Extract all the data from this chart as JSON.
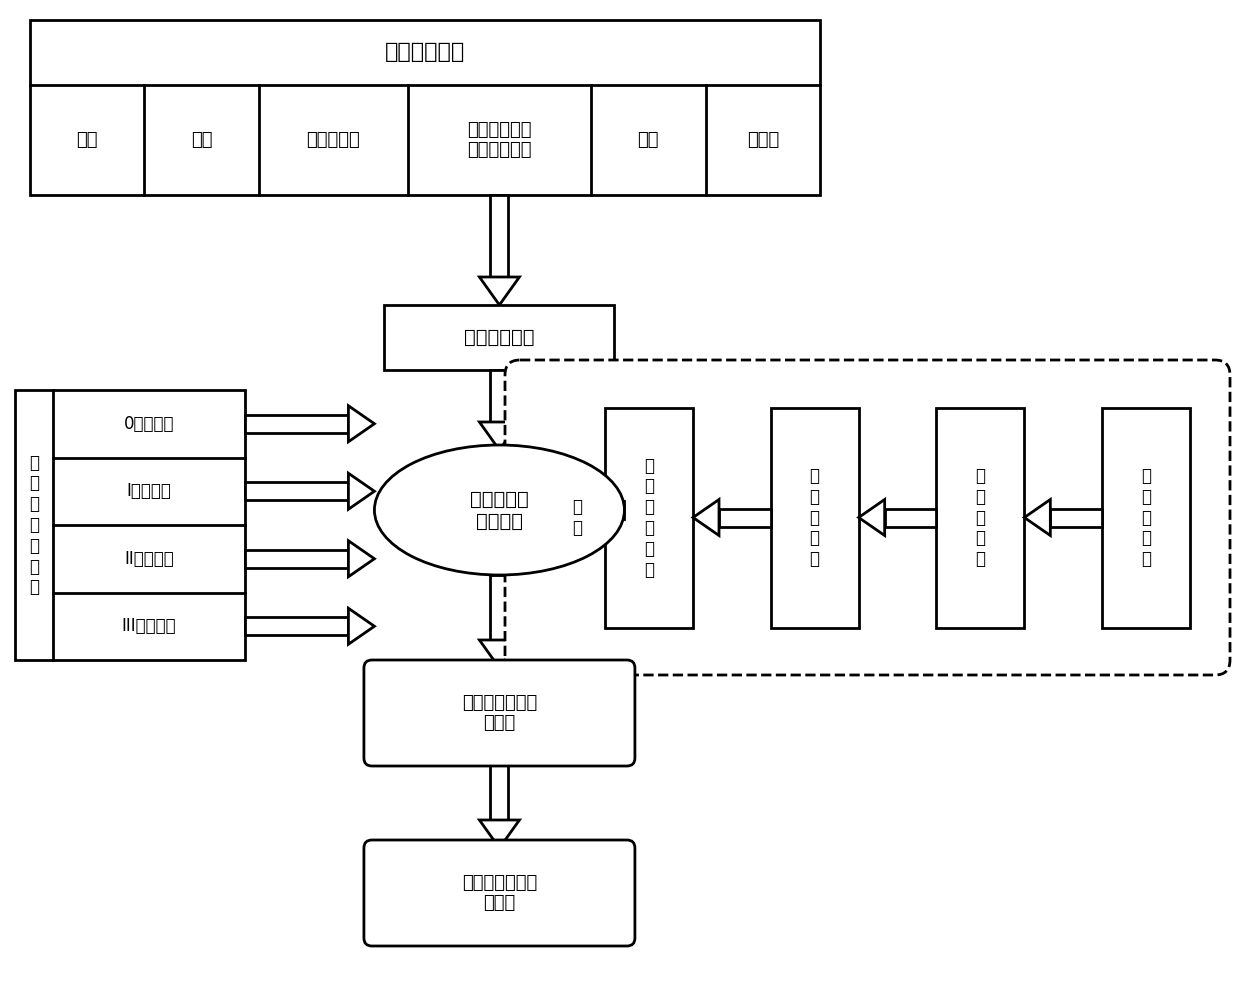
{
  "bg_color": "#ffffff",
  "ec": "#000000",
  "tc": "#000000",
  "lw": 2.0,
  "title_top": "主要影响因素",
  "factors": [
    "岩性",
    "断层",
    "最大主应力",
    "岩层走向与隙\n道轴线的夹角",
    "褶皴",
    "地下水"
  ],
  "factor_widths": [
    1.0,
    1.0,
    1.3,
    1.6,
    1.0,
    1.0
  ],
  "semi_quant_text": "半定量化处理",
  "coupled_text": "耦合大变形\n等级计算",
  "prelim_text": "大变形等级初步\n评估表",
  "final_text": "大变形等级最终\n评估表",
  "outer_left_label": "围\n岩\n大\n变\n形\n等\n级",
  "inner_left_labels": [
    "0级大变形",
    "I级大变形",
    "II级大变形",
    "III级大变形"
  ],
  "right_box_labels": [
    "随\n机\n森\n林\n计\n算",
    "半\n定\n量\n处\n理",
    "训\n练\n样\n本\n集",
    "工\n程\n案\n例\n集"
  ],
  "right_box_toplabels": [
    "随机森林计算",
    "半定量处理",
    "训练样本集",
    "工程案例集"
  ],
  "model_label": "模\n型"
}
